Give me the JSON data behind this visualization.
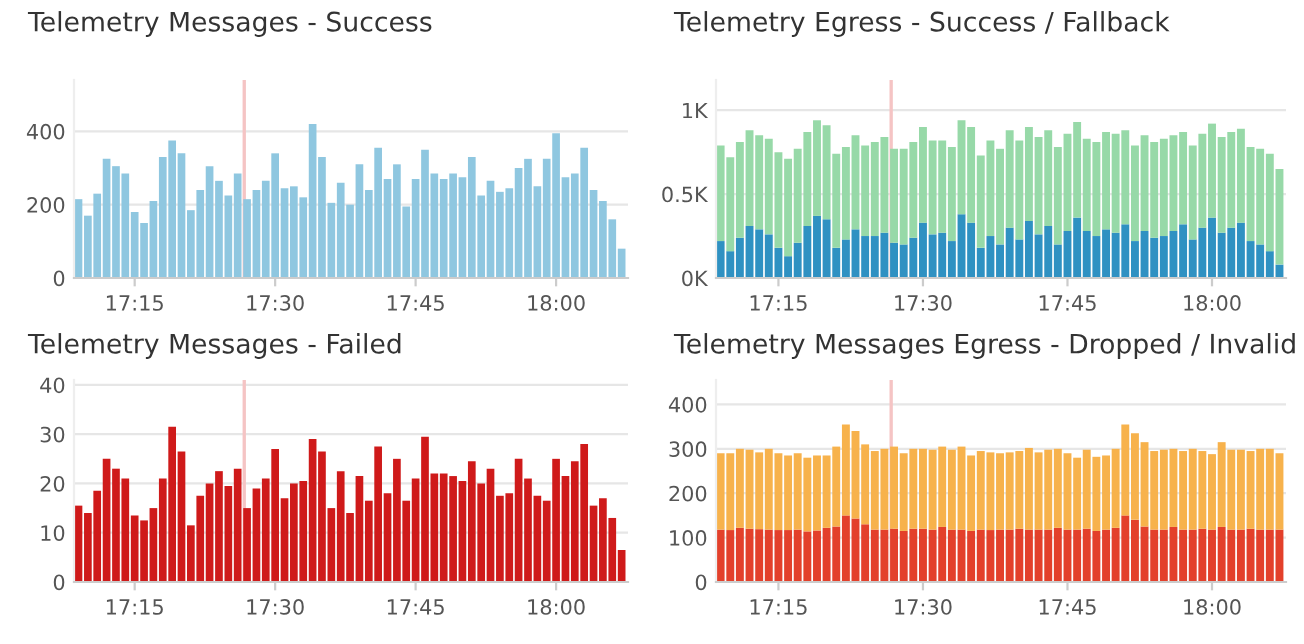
{
  "chart_data": [
    {
      "type": "bar",
      "title": "Telemetry Messages - Success",
      "x": [
        17.15,
        17.1667,
        17.1833,
        17.2,
        17.2167,
        17.2333,
        17.25,
        17.2667,
        17.2833,
        17.3,
        17.3167,
        17.3333,
        17.35,
        17.3667,
        17.3833,
        17.4,
        17.4167,
        17.4333,
        17.45,
        17.4667,
        17.4833,
        17.5,
        17.5167,
        17.5333,
        17.55,
        17.5667,
        17.5833,
        17.6,
        17.6167,
        17.6333,
        17.65,
        17.6667,
        17.6833,
        17.7,
        17.7167,
        17.7333,
        17.75,
        17.7667,
        17.7833,
        17.8,
        17.8167,
        17.8333,
        17.85,
        17.8667,
        17.8833,
        17.9,
        17.9167,
        17.9333,
        17.95,
        17.9667,
        17.9833,
        18.0,
        18.0167,
        18.0333,
        18.05,
        18.0667,
        18.0833,
        18.1,
        18.1167
      ],
      "series": [
        {
          "color": "#8fc7e0",
          "values": [
            215,
            170,
            230,
            325,
            305,
            285,
            180,
            150,
            210,
            330,
            375,
            340,
            185,
            240,
            305,
            265,
            225,
            285,
            215,
            240,
            265,
            340,
            245,
            250,
            220,
            420,
            330,
            205,
            260,
            200,
            310,
            240,
            355,
            270,
            310,
            195,
            270,
            350,
            285,
            270,
            285,
            275,
            330,
            225,
            265,
            235,
            245,
            300,
            325,
            250,
            325,
            395,
            275,
            285,
            355,
            240,
            210,
            160,
            80
          ]
        }
      ],
      "xlim": [
        17.142,
        18.128
      ],
      "xticks": [
        {
          "value": 17.25,
          "label": "17:15"
        },
        {
          "value": 17.5,
          "label": "17:30"
        },
        {
          "value": 17.75,
          "label": "17:45"
        },
        {
          "value": 18.0,
          "label": "18:00"
        }
      ],
      "ylim": [
        0,
        540
      ],
      "yticks": [
        0,
        200,
        400
      ],
      "grid": "y",
      "ref_lines": [
        {
          "axis": "x",
          "value": 17.445,
          "color": "#f5c4c4"
        }
      ]
    },
    {
      "type": "bar",
      "title": "Telemetry Egress - Success / Fallback",
      "stacked": true,
      "x": [
        17.15,
        17.1667,
        17.1833,
        17.2,
        17.2167,
        17.2333,
        17.25,
        17.2667,
        17.2833,
        17.3,
        17.3167,
        17.3333,
        17.35,
        17.3667,
        17.3833,
        17.4,
        17.4167,
        17.4333,
        17.45,
        17.4667,
        17.4833,
        17.5,
        17.5167,
        17.5333,
        17.55,
        17.5667,
        17.5833,
        17.6,
        17.6167,
        17.6333,
        17.65,
        17.6667,
        17.6833,
        17.7,
        17.7167,
        17.7333,
        17.75,
        17.7667,
        17.7833,
        17.8,
        17.8167,
        17.8333,
        17.85,
        17.8667,
        17.8833,
        17.9,
        17.9167,
        17.9333,
        17.95,
        17.9667,
        17.9833,
        18.0,
        18.0167,
        18.0333,
        18.05,
        18.0667,
        18.0833,
        18.1,
        18.1167
      ],
      "series": [
        {
          "color": "#2f91c2",
          "values": [
            0.22,
            0.16,
            0.24,
            0.31,
            0.29,
            0.26,
            0.18,
            0.13,
            0.21,
            0.31,
            0.37,
            0.35,
            0.18,
            0.23,
            0.29,
            0.25,
            0.25,
            0.27,
            0.21,
            0.2,
            0.24,
            0.33,
            0.26,
            0.27,
            0.22,
            0.38,
            0.33,
            0.18,
            0.25,
            0.2,
            0.3,
            0.23,
            0.34,
            0.26,
            0.31,
            0.2,
            0.28,
            0.36,
            0.28,
            0.25,
            0.29,
            0.27,
            0.32,
            0.22,
            0.28,
            0.24,
            0.25,
            0.28,
            0.32,
            0.23,
            0.3,
            0.36,
            0.27,
            0.3,
            0.33,
            0.22,
            0.2,
            0.16,
            0.08
          ]
        },
        {
          "color": "#97d9a8",
          "values": [
            0.57,
            0.56,
            0.57,
            0.57,
            0.56,
            0.57,
            0.57,
            0.58,
            0.56,
            0.56,
            0.57,
            0.56,
            0.56,
            0.55,
            0.56,
            0.54,
            0.56,
            0.57,
            0.56,
            0.57,
            0.57,
            0.57,
            0.56,
            0.55,
            0.56,
            0.56,
            0.57,
            0.55,
            0.57,
            0.57,
            0.58,
            0.59,
            0.56,
            0.58,
            0.57,
            0.58,
            0.58,
            0.57,
            0.55,
            0.56,
            0.58,
            0.59,
            0.56,
            0.57,
            0.57,
            0.57,
            0.58,
            0.57,
            0.55,
            0.56,
            0.56,
            0.56,
            0.57,
            0.57,
            0.56,
            0.56,
            0.57,
            0.58,
            0.57
          ]
        }
      ],
      "xlim": [
        17.142,
        18.128
      ],
      "xticks": [
        {
          "value": 17.25,
          "label": "17:15"
        },
        {
          "value": 17.5,
          "label": "17:30"
        },
        {
          "value": 17.75,
          "label": "17:45"
        },
        {
          "value": 18.0,
          "label": "18:00"
        }
      ],
      "ylim": [
        0,
        1.18
      ],
      "yticks": [
        {
          "value": 0,
          "label": "0K"
        },
        {
          "value": 0.5,
          "label": "0.5K"
        },
        {
          "value": 1,
          "label": "1K"
        }
      ],
      "grid": "y",
      "ref_lines": [
        {
          "axis": "x",
          "value": 17.445,
          "color": "#f5c4c4"
        }
      ]
    },
    {
      "type": "bar",
      "title": "Telemetry Messages - Failed",
      "x": [
        17.15,
        17.1667,
        17.1833,
        17.2,
        17.2167,
        17.2333,
        17.25,
        17.2667,
        17.2833,
        17.3,
        17.3167,
        17.3333,
        17.35,
        17.3667,
        17.3833,
        17.4,
        17.4167,
        17.4333,
        17.45,
        17.4667,
        17.4833,
        17.5,
        17.5167,
        17.5333,
        17.55,
        17.5667,
        17.5833,
        17.6,
        17.6167,
        17.6333,
        17.65,
        17.6667,
        17.6833,
        17.7,
        17.7167,
        17.7333,
        17.75,
        17.7667,
        17.7833,
        17.8,
        17.8167,
        17.8333,
        17.85,
        17.8667,
        17.8833,
        17.9,
        17.9167,
        17.9333,
        17.95,
        17.9667,
        17.9833,
        18.0,
        18.0167,
        18.0333,
        18.05,
        18.0667,
        18.0833,
        18.1,
        18.1167
      ],
      "series": [
        {
          "color": "#cf1a1a",
          "values": [
            15.5,
            14,
            18.5,
            25,
            23,
            21,
            13.5,
            12.5,
            15,
            21,
            31.5,
            26.5,
            11.5,
            17.5,
            20,
            22.5,
            19.5,
            23,
            15,
            19,
            21,
            27,
            17,
            20,
            20.5,
            29,
            26.5,
            15,
            22.5,
            14,
            21.5,
            16.5,
            27.5,
            18,
            25,
            16.5,
            21,
            29.5,
            22,
            22,
            21.5,
            20.5,
            24.5,
            20,
            23,
            17.5,
            18,
            25,
            21,
            17.5,
            16.5,
            25,
            21.5,
            24.5,
            28,
            15.5,
            17,
            13,
            6.5
          ]
        }
      ],
      "xlim": [
        17.142,
        18.128
      ],
      "xticks": [
        {
          "value": 17.25,
          "label": "17:15"
        },
        {
          "value": 17.5,
          "label": "17:30"
        },
        {
          "value": 17.75,
          "label": "17:45"
        },
        {
          "value": 18.0,
          "label": "18:00"
        }
      ],
      "ylim": [
        0,
        41
      ],
      "yticks": [
        0,
        10,
        20,
        30,
        40
      ],
      "grid": "y",
      "ref_lines": [
        {
          "axis": "x",
          "value": 17.445,
          "color": "#f5c4c4"
        }
      ]
    },
    {
      "type": "bar",
      "title": "Telemetry Messages Egress - Dropped / Invalid",
      "stacked": true,
      "x": [
        17.15,
        17.1667,
        17.1833,
        17.2,
        17.2167,
        17.2333,
        17.25,
        17.2667,
        17.2833,
        17.3,
        17.3167,
        17.3333,
        17.35,
        17.3667,
        17.3833,
        17.4,
        17.4167,
        17.4333,
        17.45,
        17.4667,
        17.4833,
        17.5,
        17.5167,
        17.5333,
        17.55,
        17.5667,
        17.5833,
        17.6,
        17.6167,
        17.6333,
        17.65,
        17.6667,
        17.6833,
        17.7,
        17.7167,
        17.7333,
        17.75,
        17.7667,
        17.7833,
        17.8,
        17.8167,
        17.8333,
        17.85,
        17.8667,
        17.8833,
        17.9,
        17.9167,
        17.9333,
        17.95,
        17.9667,
        17.9833,
        18.0,
        18.0167,
        18.0333,
        18.05,
        18.0667,
        18.0833,
        18.1,
        18.1167
      ],
      "series": [
        {
          "color": "#e3402b",
          "values": [
            118,
            117,
            122,
            120,
            119,
            118,
            117,
            117,
            118,
            114,
            116,
            122,
            125,
            150,
            143,
            130,
            118,
            118,
            120,
            115,
            120,
            120,
            118,
            124,
            118,
            118,
            115,
            118,
            117,
            118,
            118,
            120,
            118,
            118,
            118,
            122,
            118,
            118,
            120,
            115,
            118,
            122,
            150,
            140,
            125,
            118,
            118,
            124,
            118,
            118,
            120,
            118,
            124,
            118,
            118,
            120,
            118,
            118,
            118
          ]
        },
        {
          "color": "#f7b24c",
          "values": [
            172,
            173,
            178,
            178,
            173,
            182,
            173,
            168,
            172,
            166,
            169,
            163,
            180,
            205,
            197,
            180,
            177,
            182,
            185,
            175,
            180,
            180,
            180,
            181,
            180,
            187,
            170,
            177,
            175,
            172,
            174,
            175,
            184,
            174,
            180,
            178,
            172,
            162,
            178,
            167,
            167,
            178,
            205,
            195,
            190,
            177,
            180,
            176,
            177,
            182,
            175,
            170,
            191,
            180,
            180,
            175,
            182,
            182,
            172
          ]
        }
      ],
      "xlim": [
        17.142,
        18.128
      ],
      "xticks": [
        {
          "value": 17.25,
          "label": "17:15"
        },
        {
          "value": 17.5,
          "label": "17:30"
        },
        {
          "value": 17.75,
          "label": "17:45"
        },
        {
          "value": 18.0,
          "label": "18:00"
        }
      ],
      "ylim": [
        0,
        455
      ],
      "yticks": [
        0,
        100,
        200,
        300,
        400
      ],
      "grid": "y",
      "ref_lines": [
        {
          "axis": "x",
          "value": 17.445,
          "color": "#f5c4c4"
        }
      ]
    }
  ]
}
